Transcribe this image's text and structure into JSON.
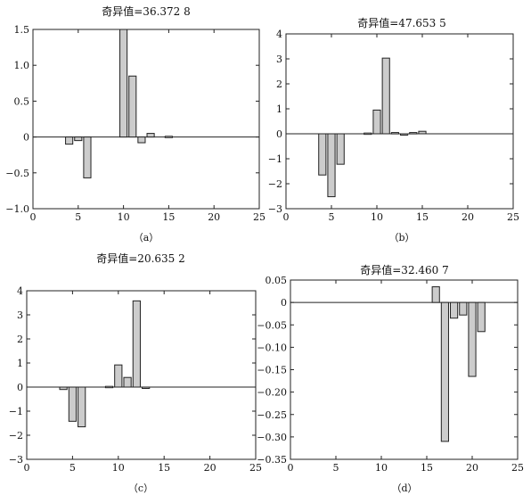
{
  "chart_data": [
    {
      "type": "bar",
      "title": "奇异值=36.372 8",
      "caption": "（a）",
      "xlim": [
        0,
        25
      ],
      "ylim": [
        -1.0,
        1.5
      ],
      "xticks": [
        0,
        5,
        10,
        15,
        20,
        25
      ],
      "xtick_labels": [
        "0",
        "5",
        "10",
        "15",
        "20",
        "25"
      ],
      "yticks": [
        -1.0,
        -0.5,
        0,
        0.5,
        1.0,
        1.5
      ],
      "ytick_labels": [
        "−1.0",
        "−0.5",
        "0",
        "0.5",
        "1.0",
        "1.5"
      ],
      "x": [
        4,
        5,
        6,
        10,
        11,
        12,
        13,
        15
      ],
      "values": [
        -0.1,
        -0.05,
        -0.57,
        1.5,
        0.85,
        -0.08,
        0.05,
        0.01
      ],
      "bar_color": "#cccccc",
      "grid": false
    },
    {
      "type": "bar",
      "title": "奇异值=47.653 5",
      "caption": "（b）",
      "xlim": [
        0,
        25
      ],
      "ylim": [
        -3,
        4
      ],
      "xticks": [
        0,
        5,
        10,
        15,
        20,
        25
      ],
      "xtick_labels": [
        "0",
        "5",
        "10",
        "15",
        "20",
        "25"
      ],
      "yticks": [
        -3,
        -2,
        -1,
        0,
        1,
        2,
        3,
        4
      ],
      "ytick_labels": [
        "−3",
        "−2",
        "−1",
        "0",
        "1",
        "2",
        "3",
        "4"
      ],
      "x": [
        4,
        5,
        6,
        9,
        10,
        11,
        12,
        13,
        14,
        15
      ],
      "values": [
        -1.65,
        -2.52,
        -1.22,
        0.03,
        0.95,
        3.03,
        0.05,
        -0.05,
        0.05,
        0.1
      ],
      "bar_color": "#cccccc",
      "grid": false
    },
    {
      "type": "bar",
      "title": "奇异值=20.635 2",
      "caption": "（c）",
      "xlim": [
        0,
        25
      ],
      "ylim": [
        -3,
        4
      ],
      "xticks": [
        0,
        5,
        10,
        15,
        20,
        25
      ],
      "xtick_labels": [
        "0",
        "5",
        "10",
        "15",
        "20",
        "25"
      ],
      "yticks": [
        -3,
        -2,
        -1,
        0,
        1,
        2,
        3,
        4
      ],
      "ytick_labels": [
        "−3",
        "−2",
        "−1",
        "0",
        "1",
        "2",
        "3",
        "4"
      ],
      "x": [
        4,
        5,
        6,
        9,
        10,
        11,
        12,
        13
      ],
      "values": [
        -0.1,
        -1.42,
        -1.65,
        0.03,
        0.92,
        0.4,
        3.58,
        -0.03
      ],
      "bar_color": "#cccccc",
      "grid": false
    },
    {
      "type": "bar",
      "title": "奇异值=32.460 7",
      "caption": "（d）",
      "xlim": [
        0,
        25
      ],
      "ylim": [
        -0.35,
        0.05
      ],
      "xticks": [
        0,
        5,
        10,
        15,
        20,
        25
      ],
      "xtick_labels": [
        "0",
        "5",
        "10",
        "15",
        "20",
        "25"
      ],
      "yticks": [
        -0.35,
        -0.3,
        -0.25,
        -0.2,
        -0.15,
        -0.1,
        -0.05,
        0,
        0.05
      ],
      "ytick_labels": [
        "−0.35",
        "−0.30",
        "−0.25",
        "−0.20",
        "−0.15",
        "−0.10",
        "−0.05",
        "0",
        "0.05"
      ],
      "x": [
        16,
        17,
        18,
        19,
        20,
        21
      ],
      "values": [
        0.035,
        -0.31,
        -0.035,
        -0.028,
        -0.165,
        -0.065
      ],
      "bar_color": "#cccccc",
      "grid": false
    }
  ]
}
